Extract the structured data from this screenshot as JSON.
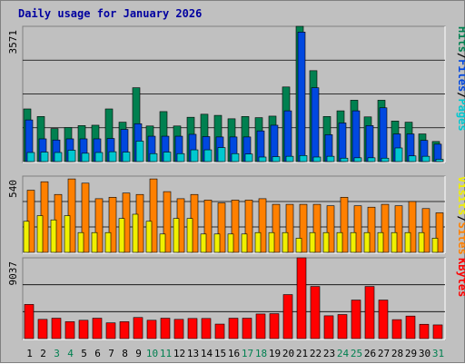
{
  "title": "Daily usage for January 2026",
  "colors": {
    "pages": "#00c8d0",
    "files": "#0048e0",
    "hits": "#008050",
    "visits": "#f0f000",
    "sites": "#ff8000",
    "kbytes": "#ff0000"
  },
  "chart_data": [
    {
      "type": "bar",
      "name": "pages-files-hits",
      "categories": [
        "1",
        "2",
        "3",
        "4",
        "5",
        "6",
        "7",
        "8",
        "9",
        "10",
        "11",
        "12",
        "13",
        "14",
        "15",
        "16",
        "17",
        "18",
        "19",
        "20",
        "21",
        "22",
        "23",
        "24",
        "25",
        "26",
        "27",
        "28",
        "29",
        "30",
        "31"
      ],
      "max_label": "3571",
      "ylim": [
        0,
        3571
      ],
      "legend": [
        "Pages",
        "/",
        "Files",
        "/",
        "Hits"
      ],
      "series": [
        {
          "name": "Hits",
          "values": [
            1390,
            1190,
            870,
            900,
            950,
            960,
            1390,
            1040,
            1950,
            940,
            1320,
            940,
            1170,
            1250,
            1220,
            1130,
            1190,
            1160,
            1200,
            1970,
            3571,
            2400,
            1190,
            1340,
            1620,
            1180,
            1620,
            1070,
            1040,
            730,
            530
          ]
        },
        {
          "name": "Files",
          "values": [
            1100,
            600,
            570,
            600,
            600,
            600,
            610,
            850,
            1000,
            670,
            670,
            670,
            720,
            660,
            650,
            650,
            650,
            810,
            960,
            1340,
            3420,
            1950,
            710,
            1020,
            1340,
            950,
            1420,
            730,
            730,
            560,
            460
          ]
        },
        {
          "name": "Pages",
          "values": [
            240,
            250,
            240,
            300,
            220,
            240,
            260,
            250,
            540,
            210,
            250,
            210,
            310,
            310,
            370,
            210,
            200,
            120,
            130,
            140,
            160,
            120,
            140,
            90,
            100,
            100,
            90,
            360,
            150,
            140,
            60
          ]
        }
      ]
    },
    {
      "type": "bar",
      "name": "visits-sites",
      "categories": [
        "1",
        "2",
        "3",
        "4",
        "5",
        "6",
        "7",
        "8",
        "9",
        "10",
        "11",
        "12",
        "13",
        "14",
        "15",
        "16",
        "17",
        "18",
        "19",
        "20",
        "21",
        "22",
        "23",
        "24",
        "25",
        "26",
        "27",
        "28",
        "29",
        "30",
        "31"
      ],
      "max_label": "540",
      "ylim": [
        0,
        540
      ],
      "legend": [
        "Sites",
        "/",
        "Visits"
      ],
      "series": [
        {
          "name": "Sites",
          "values": [
            440,
            500,
            410,
            520,
            490,
            380,
            390,
            420,
            410,
            520,
            430,
            380,
            410,
            370,
            350,
            370,
            370,
            380,
            340,
            340,
            340,
            340,
            330,
            390,
            330,
            320,
            340,
            330,
            360,
            310,
            280
          ]
        },
        {
          "name": "Visits",
          "values": [
            220,
            260,
            230,
            260,
            140,
            140,
            140,
            240,
            270,
            220,
            130,
            240,
            240,
            130,
            130,
            130,
            130,
            140,
            140,
            140,
            100,
            140,
            140,
            140,
            140,
            140,
            140,
            140,
            140,
            140,
            100
          ]
        }
      ]
    },
    {
      "type": "bar",
      "name": "kbytes",
      "categories": [
        "1",
        "2",
        "3",
        "4",
        "5",
        "6",
        "7",
        "8",
        "9",
        "10",
        "11",
        "12",
        "13",
        "14",
        "15",
        "16",
        "17",
        "18",
        "19",
        "20",
        "21",
        "22",
        "23",
        "24",
        "25",
        "26",
        "27",
        "28",
        "29",
        "30",
        "31"
      ],
      "max_label": "9037",
      "ylim": [
        0,
        9037
      ],
      "legend": [
        "KBytes"
      ],
      "series": [
        {
          "name": "KBytes",
          "values": [
            3820,
            2150,
            2280,
            1890,
            2050,
            2280,
            1760,
            1890,
            2360,
            2050,
            2280,
            2150,
            2250,
            2250,
            1620,
            2280,
            2280,
            2750,
            2790,
            4920,
            9037,
            5830,
            2550,
            2690,
            4310,
            5830,
            4310,
            2120,
            2520,
            1600,
            1530
          ]
        }
      ]
    }
  ]
}
